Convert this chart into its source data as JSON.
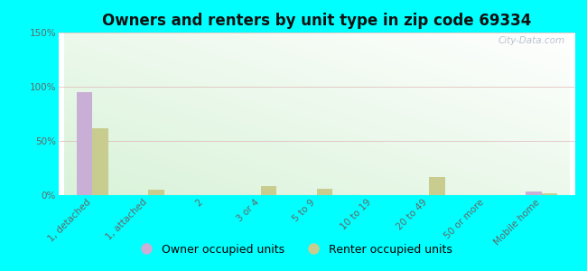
{
  "title": "Owners and renters by unit type in zip code 69334",
  "categories": [
    "1, detached",
    "1, attached",
    "2",
    "3 or 4",
    "5 to 9",
    "10 to 19",
    "20 to 49",
    "50 or more",
    "Mobile home"
  ],
  "owner_values": [
    95,
    0,
    0,
    0,
    0,
    0,
    0,
    0,
    3
  ],
  "renter_values": [
    62,
    5,
    0,
    8,
    6,
    0,
    17,
    0,
    2
  ],
  "owner_color": "#c9aed6",
  "renter_color": "#c8cc8e",
  "background_color": "#00ffff",
  "ylim": [
    0,
    150
  ],
  "yticks": [
    0,
    50,
    100,
    150
  ],
  "ytick_labels": [
    "0%",
    "50%",
    "100%",
    "150%"
  ],
  "legend_owner": "Owner occupied units",
  "legend_renter": "Renter occupied units",
  "watermark": "City-Data.com",
  "title_fontsize": 12,
  "tick_fontsize": 7.5,
  "legend_fontsize": 9
}
